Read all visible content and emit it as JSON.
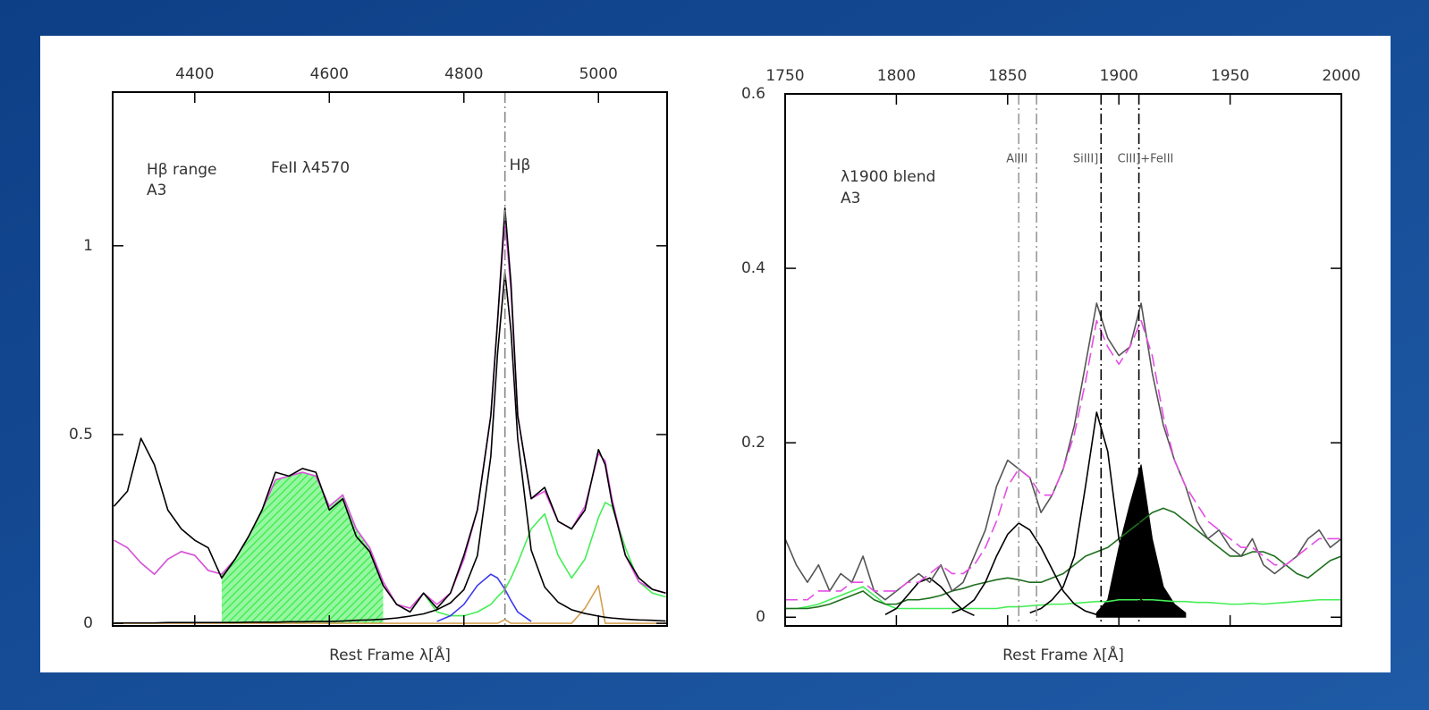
{
  "chart_data": [
    {
      "type": "line",
      "xlabel": "Rest Frame λ[Å]",
      "annotations": [
        "Hβ range",
        "A3",
        "FeII λ4570"
      ],
      "xlim": [
        4278,
        5102
      ],
      "ylim": [
        -0.007,
        1.407
      ],
      "xticks": [
        4400,
        4600,
        4800,
        5000
      ],
      "yticks": [
        0,
        0.5,
        1
      ],
      "x": [
        4280,
        4300,
        4320,
        4340,
        4360,
        4380,
        4400,
        4420,
        4440,
        4460,
        4480,
        4500,
        4520,
        4540,
        4560,
        4580,
        4600,
        4620,
        4640,
        4660,
        4680,
        4700,
        4720,
        4740,
        4760,
        4780,
        4800,
        4820,
        4840,
        4850,
        4861,
        4870,
        4880,
        4900,
        4920,
        4940,
        4960,
        4980,
        5000,
        5010,
        5020,
        5040,
        5060,
        5080,
        5100
      ],
      "series": [
        {
          "color": "#44ee55",
          "hatch_range": [
            4440,
            4680
          ],
          "values": [
            0.22,
            0.2,
            0.16,
            0.13,
            0.17,
            0.19,
            0.18,
            0.14,
            0.13,
            0.17,
            0.23,
            0.3,
            0.38,
            0.39,
            0.4,
            0.39,
            0.31,
            0.34,
            0.25,
            0.2,
            0.11,
            0.05,
            0.04,
            0.08,
            0.03,
            0.02,
            0.02,
            0.03,
            0.05,
            0.07,
            0.09,
            0.12,
            0.16,
            0.25,
            0.29,
            0.18,
            0.12,
            0.17,
            0.28,
            0.32,
            0.31,
            0.2,
            0.11,
            0.08,
            0.07
          ]
        },
        {
          "color": "#d4a050",
          "values": [
            0,
            0,
            0,
            0,
            0,
            0,
            0,
            0,
            0,
            0,
            0,
            0,
            0,
            0,
            0,
            0,
            0,
            0,
            0,
            0,
            0,
            0,
            0,
            0,
            0,
            0,
            0,
            0,
            0,
            0,
            0.01,
            0,
            0,
            0,
            0,
            0,
            0,
            0.04,
            0.1,
            0,
            0,
            0,
            0,
            0,
            0
          ]
        },
        {
          "color": "#3a3aee",
          "x": [
            4760,
            4780,
            4800,
            4820,
            4840,
            4850,
            4861,
            4870,
            4880,
            4900
          ],
          "values": [
            0.005,
            0.02,
            0.05,
            0.1,
            0.13,
            0.12,
            0.09,
            0.06,
            0.03,
            0.005
          ]
        },
        {
          "color": "#000000",
          "values": [
            0.001,
            0.001,
            0.001,
            0.001,
            0.002,
            0.002,
            0.002,
            0.002,
            0.002,
            0.002,
            0.003,
            0.003,
            0.003,
            0.004,
            0.004,
            0.005,
            0.005,
            0.006,
            0.008,
            0.009,
            0.011,
            0.014,
            0.019,
            0.025,
            0.036,
            0.054,
            0.089,
            0.179,
            0.442,
            0.714,
            0.93,
            0.773,
            0.489,
            0.194,
            0.096,
            0.056,
            0.036,
            0.026,
            0.019,
            0.016,
            0.014,
            0.011,
            0.009,
            0.008,
            0.006
          ]
        },
        {
          "color": "#e44ee4",
          "values": [
            0.22,
            0.2,
            0.16,
            0.13,
            0.17,
            0.19,
            0.18,
            0.14,
            0.13,
            0.17,
            0.23,
            0.3,
            0.38,
            0.39,
            0.4,
            0.39,
            0.31,
            0.34,
            0.25,
            0.2,
            0.11,
            0.05,
            0.04,
            0.08,
            0.05,
            0.08,
            0.17,
            0.3,
            0.55,
            0.8,
            1.07,
            0.88,
            0.55,
            0.33,
            0.35,
            0.27,
            0.25,
            0.31,
            0.45,
            0.43,
            0.33,
            0.18,
            0.11,
            0.09,
            0.08
          ]
        },
        {
          "color": "#000000",
          "values": [
            0.31,
            0.35,
            0.49,
            0.42,
            0.3,
            0.25,
            0.22,
            0.2,
            0.12,
            0.17,
            0.23,
            0.3,
            0.4,
            0.39,
            0.41,
            0.4,
            0.3,
            0.33,
            0.23,
            0.19,
            0.1,
            0.05,
            0.03,
            0.08,
            0.04,
            0.08,
            0.18,
            0.3,
            0.55,
            0.8,
            1.1,
            0.9,
            0.55,
            0.33,
            0.36,
            0.27,
            0.25,
            0.3,
            0.46,
            0.42,
            0.32,
            0.18,
            0.12,
            0.09,
            0.08
          ]
        }
      ],
      "vlines": [
        {
          "x": 4861,
          "color": "#888888",
          "label": "Hβ"
        }
      ]
    },
    {
      "type": "line",
      "xlabel": "Rest Frame λ[Å]",
      "annotations": [
        "λ1900 blend",
        "A3"
      ],
      "xlim": [
        1750,
        2000
      ],
      "ylim": [
        -0.01,
        0.6
      ],
      "xticks": [
        1750,
        1800,
        1850,
        1900,
        1950,
        2000
      ],
      "yticks": [
        0,
        0.2,
        0.4,
        0.6
      ],
      "x": [
        1750,
        1755,
        1760,
        1765,
        1770,
        1775,
        1780,
        1785,
        1790,
        1795,
        1800,
        1805,
        1810,
        1815,
        1820,
        1825,
        1830,
        1835,
        1840,
        1845,
        1850,
        1855,
        1860,
        1865,
        1870,
        1875,
        1880,
        1885,
        1890,
        1895,
        1900,
        1905,
        1910,
        1915,
        1920,
        1925,
        1930,
        1935,
        1940,
        1945,
        1950,
        1955,
        1960,
        1965,
        1970,
        1975,
        1980,
        1985,
        1990,
        1995,
        2000
      ],
      "series": [
        {
          "color": "#000000",
          "fill": true,
          "x": [
            1890,
            1895,
            1900,
            1905,
            1910,
            1915,
            1920,
            1925,
            1930
          ],
          "values": [
            0.005,
            0.02,
            0.08,
            0.13,
            0.175,
            0.09,
            0.035,
            0.015,
            0.005
          ]
        },
        {
          "color": "#44ee55",
          "values": [
            0.01,
            0.01,
            0.012,
            0.015,
            0.02,
            0.025,
            0.03,
            0.035,
            0.025,
            0.015,
            0.01,
            0.01,
            0.01,
            0.01,
            0.01,
            0.01,
            0.01,
            0.01,
            0.01,
            0.01,
            0.012,
            0.012,
            0.013,
            0.014,
            0.015,
            0.015,
            0.016,
            0.017,
            0.018,
            0.018,
            0.02,
            0.02,
            0.02,
            0.02,
            0.019,
            0.018,
            0.018,
            0.017,
            0.017,
            0.016,
            0.015,
            0.015,
            0.016,
            0.015,
            0.016,
            0.017,
            0.018,
            0.019,
            0.02,
            0.02,
            0.02
          ]
        },
        {
          "color": "#1e6e1e",
          "values": [
            0.01,
            0.01,
            0.01,
            0.012,
            0.015,
            0.02,
            0.025,
            0.03,
            0.02,
            0.015,
            0.015,
            0.02,
            0.02,
            0.022,
            0.025,
            0.03,
            0.033,
            0.037,
            0.04,
            0.043,
            0.045,
            0.043,
            0.04,
            0.04,
            0.045,
            0.05,
            0.06,
            0.07,
            0.075,
            0.08,
            0.09,
            0.1,
            0.11,
            0.12,
            0.125,
            0.12,
            0.11,
            0.1,
            0.09,
            0.08,
            0.07,
            0.07,
            0.075,
            0.075,
            0.07,
            0.06,
            0.05,
            0.045,
            0.055,
            0.065,
            0.07
          ]
        },
        {
          "color": "#000000",
          "x": [
            1795,
            1800,
            1805,
            1810,
            1815,
            1820,
            1825,
            1830,
            1835
          ],
          "values": [
            0.003,
            0.01,
            0.025,
            0.04,
            0.045,
            0.035,
            0.02,
            0.008,
            0.002
          ]
        },
        {
          "color": "#000000",
          "x": [
            1825,
            1830,
            1835,
            1840,
            1845,
            1850,
            1855,
            1860,
            1865,
            1870,
            1875,
            1880,
            1885,
            1890
          ],
          "values": [
            0.005,
            0.01,
            0.02,
            0.04,
            0.07,
            0.095,
            0.108,
            0.1,
            0.08,
            0.055,
            0.03,
            0.015,
            0.007,
            0.003
          ]
        },
        {
          "color": "#000000",
          "x": [
            1860,
            1865,
            1870,
            1875,
            1880,
            1885,
            1890,
            1895,
            1900,
            1905,
            1910,
            1915,
            1920
          ],
          "values": [
            0.005,
            0.01,
            0.02,
            0.035,
            0.07,
            0.15,
            0.235,
            0.19,
            0.09,
            0.04,
            0.02,
            0.01,
            0.005
          ]
        },
        {
          "color": "#555555",
          "values": [
            0.09,
            0.06,
            0.04,
            0.06,
            0.03,
            0.05,
            0.04,
            0.07,
            0.03,
            0.02,
            0.03,
            0.04,
            0.05,
            0.04,
            0.06,
            0.03,
            0.04,
            0.07,
            0.1,
            0.15,
            0.18,
            0.17,
            0.16,
            0.12,
            0.14,
            0.17,
            0.22,
            0.29,
            0.36,
            0.32,
            0.3,
            0.31,
            0.36,
            0.28,
            0.22,
            0.18,
            0.15,
            0.11,
            0.09,
            0.1,
            0.08,
            0.07,
            0.09,
            0.06,
            0.05,
            0.06,
            0.07,
            0.09,
            0.1,
            0.08,
            0.09
          ]
        },
        {
          "color": "#e44ee4",
          "dash": true,
          "values": [
            0.02,
            0.02,
            0.02,
            0.03,
            0.03,
            0.03,
            0.04,
            0.04,
            0.03,
            0.03,
            0.03,
            0.04,
            0.04,
            0.05,
            0.06,
            0.05,
            0.05,
            0.06,
            0.08,
            0.11,
            0.15,
            0.17,
            0.16,
            0.14,
            0.14,
            0.17,
            0.21,
            0.27,
            0.34,
            0.31,
            0.29,
            0.31,
            0.34,
            0.3,
            0.23,
            0.18,
            0.15,
            0.13,
            0.11,
            0.1,
            0.09,
            0.08,
            0.08,
            0.07,
            0.06,
            0.06,
            0.07,
            0.08,
            0.09,
            0.09,
            0.09
          ]
        }
      ],
      "vlines": [
        {
          "x": 1855,
          "color": "#999999",
          "label": "AlIII"
        },
        {
          "x": 1863,
          "color": "#999999"
        },
        {
          "x": 1892,
          "color": "#000000",
          "label": "SiIII]"
        },
        {
          "x": 1909,
          "color": "#000000",
          "label": "CIII]+FeIII"
        }
      ]
    }
  ]
}
